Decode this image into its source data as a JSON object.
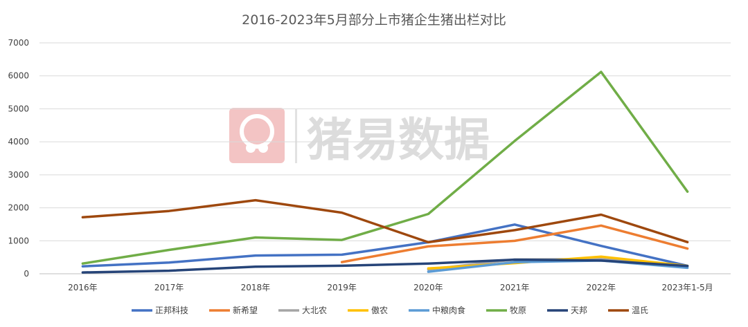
{
  "chart_data": {
    "type": "line",
    "title": "2016-2023年5月部分上市猪企生猪出栏对比",
    "categories": [
      "2016年",
      "2017年",
      "2018年",
      "2019年",
      "2020年",
      "2021年",
      "2022年",
      "2023年1-5月"
    ],
    "ylim": [
      0,
      7000
    ],
    "yticks": [
      0,
      1000,
      2000,
      3000,
      4000,
      5000,
      6000,
      7000
    ],
    "grid": true,
    "legend_position": "bottom",
    "series": [
      {
        "name": "正邦科技",
        "color": "#4472C4",
        "values": [
          226,
          340,
          554,
          578,
          956,
          1493,
          844,
          240
        ]
      },
      {
        "name": "新希望",
        "color": "#ED7D31",
        "values": [
          null,
          null,
          null,
          355,
          829,
          998,
          1461,
          763
        ]
      },
      {
        "name": "大北农",
        "color": "#A5A5A5",
        "values": [
          null,
          null,
          null,
          null,
          130,
          432,
          446,
          230
        ]
      },
      {
        "name": "傲农",
        "color": "#FFC000",
        "values": [
          null,
          null,
          null,
          null,
          161,
          322,
          520,
          239
        ]
      },
      {
        "name": "中粮肉食",
        "color": "#5B9BD5",
        "values": [
          null,
          null,
          null,
          null,
          60,
          350,
          400,
          180
        ]
      },
      {
        "name": "牧原",
        "color": "#70AD47",
        "values": [
          311,
          724,
          1101,
          1025,
          1812,
          4026,
          6120,
          2489
        ]
      },
      {
        "name": "天邦",
        "color": "#264478",
        "values": [
          40,
          92,
          216,
          243,
          308,
          428,
          400,
          235
        ]
      },
      {
        "name": "温氏",
        "color": "#9E480E",
        "values": [
          1713,
          1904,
          2229,
          1852,
          955,
          1322,
          1791,
          960
        ]
      }
    ]
  },
  "watermark": {
    "text": "猪易数据",
    "color": "#f3b2b2"
  }
}
